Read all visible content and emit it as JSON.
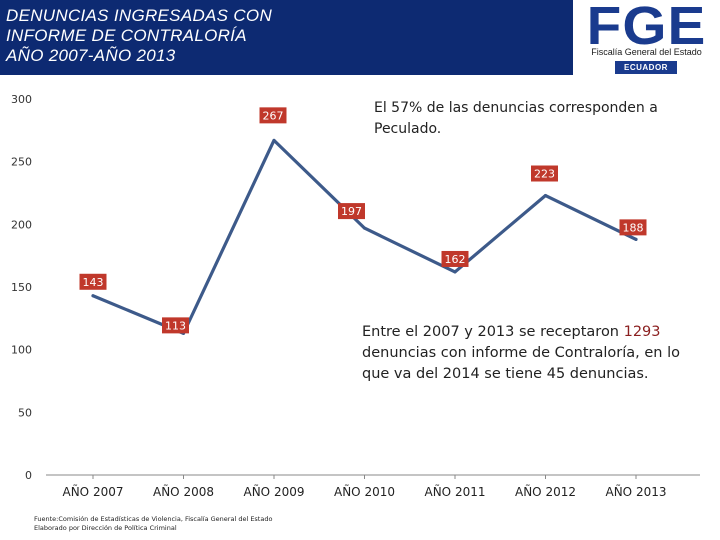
{
  "header": {
    "title_lines": [
      "DENUNCIAS INGRESADAS CON",
      "INFORME DE CONTRALORÍA",
      "AÑO 2007-AÑO 2013"
    ]
  },
  "logo": {
    "text": "FGE",
    "subtitle": "Fiscalía General del Estado",
    "country": "ECUADOR"
  },
  "colors": {
    "header_bg": "#0d2a72",
    "line": "#3d5a8a",
    "label_bg": "#c0382b",
    "highlight": "#8b1f1f"
  },
  "chart_data": {
    "type": "line",
    "title": "DENUNCIAS INGRESADAS CON INFORME DE CONTRALORÍA AÑO 2007-AÑO 2013",
    "categories": [
      "AÑO 2007",
      "AÑO 2008",
      "AÑO 2009",
      "AÑO 2010",
      "AÑO 2011",
      "AÑO 2012",
      "AÑO 2013"
    ],
    "values": [
      143,
      113,
      267,
      197,
      162,
      223,
      188
    ],
    "ylim": [
      0,
      300
    ],
    "yticks": [
      0,
      50,
      100,
      150,
      200,
      250,
      300
    ],
    "xlabel": "",
    "ylabel": "",
    "grid": false,
    "legend": "none"
  },
  "notes": {
    "note1": "El 57% de las denuncias corresponden a Peculado.",
    "note2_pre": "Entre el 2007 y 2013 se receptaron ",
    "note2_highlight": "1293",
    "note2_post": " denuncias con informe de Contraloría, en lo que va del 2014 se tiene 45 denuncias."
  },
  "source": {
    "line1": "Fuente:Comisión de Estadísticas de Violencia, Fiscalía General del Estado",
    "line2": "Elaborado por Dirección de Política Criminal"
  }
}
